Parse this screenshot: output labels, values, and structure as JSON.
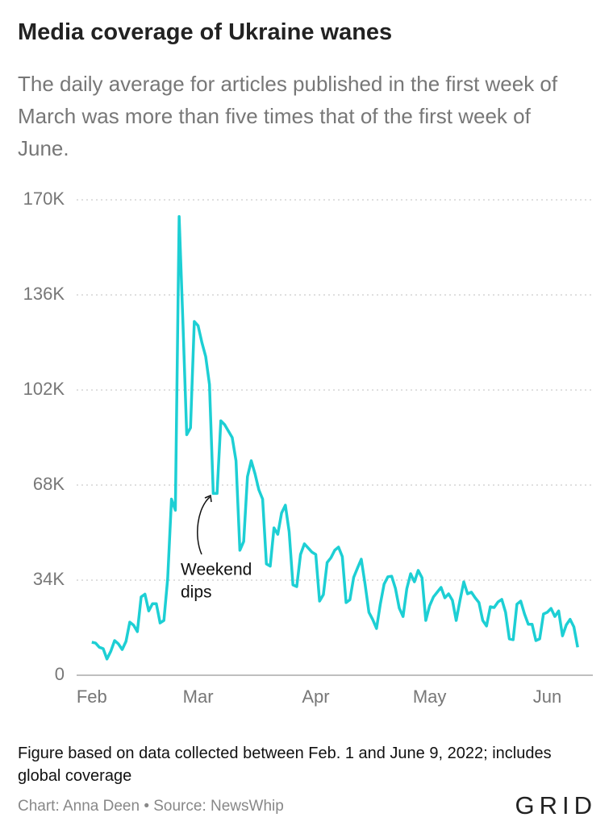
{
  "chart_data": {
    "type": "line",
    "title": "Media coverage of Ukraine wanes",
    "subtitle": "The daily average for articles published in the first week of March was more than five times that of the first week of June.",
    "annotation": [
      "Weekend",
      "dips"
    ],
    "footnote": "Figure based on data collected between Feb. 1 and June 9, 2022; includes global coverage",
    "credit": "Chart: Anna Deen • Source: NewsWhip",
    "logo": "GRID",
    "xlim": [
      "2022-01-28",
      "2022-06-13"
    ],
    "xticks": [
      {
        "value": "2022-02-01",
        "label": "Feb"
      },
      {
        "value": "2022-03-01",
        "label": "Mar"
      },
      {
        "value": "2022-04-01",
        "label": "Apr"
      },
      {
        "value": "2022-05-01",
        "label": "May"
      },
      {
        "value": "2022-06-01",
        "label": "Jun"
      }
    ],
    "ylim": [
      0,
      170000
    ],
    "yticks": [
      0,
      {
        "value": 34000,
        "label": "34K"
      },
      {
        "value": 68000,
        "label": "68K"
      },
      {
        "value": 102000,
        "label": "102K"
      },
      {
        "value": 136000,
        "label": "136K"
      },
      {
        "value": 170000,
        "label": "170K"
      }
    ],
    "grid": true,
    "color": "#1dcfd4",
    "x": [
      "2022-02-01",
      "2022-02-02",
      "2022-02-03",
      "2022-02-04",
      "2022-02-05",
      "2022-02-06",
      "2022-02-07",
      "2022-02-08",
      "2022-02-09",
      "2022-02-10",
      "2022-02-11",
      "2022-02-12",
      "2022-02-13",
      "2022-02-14",
      "2022-02-15",
      "2022-02-16",
      "2022-02-17",
      "2022-02-18",
      "2022-02-19",
      "2022-02-20",
      "2022-02-21",
      "2022-02-22",
      "2022-02-23",
      "2022-02-24",
      "2022-02-25",
      "2022-02-26",
      "2022-02-27",
      "2022-02-28",
      "2022-03-01",
      "2022-03-02",
      "2022-03-03",
      "2022-03-04",
      "2022-03-05",
      "2022-03-06",
      "2022-03-07",
      "2022-03-08",
      "2022-03-09",
      "2022-03-10",
      "2022-03-11",
      "2022-03-12",
      "2022-03-13",
      "2022-03-14",
      "2022-03-15",
      "2022-03-16",
      "2022-03-17",
      "2022-03-18",
      "2022-03-19",
      "2022-03-20",
      "2022-03-21",
      "2022-03-22",
      "2022-03-23",
      "2022-03-24",
      "2022-03-25",
      "2022-03-26",
      "2022-03-27",
      "2022-03-28",
      "2022-03-29",
      "2022-03-30",
      "2022-03-31",
      "2022-04-01",
      "2022-04-02",
      "2022-04-03",
      "2022-04-04",
      "2022-04-05",
      "2022-04-06",
      "2022-04-07",
      "2022-04-08",
      "2022-04-09",
      "2022-04-10",
      "2022-04-11",
      "2022-04-12",
      "2022-04-13",
      "2022-04-14",
      "2022-04-15",
      "2022-04-16",
      "2022-04-17",
      "2022-04-18",
      "2022-04-19",
      "2022-04-20",
      "2022-04-21",
      "2022-04-22",
      "2022-04-23",
      "2022-04-24",
      "2022-04-25",
      "2022-04-26",
      "2022-04-27",
      "2022-04-28",
      "2022-04-29",
      "2022-04-30",
      "2022-05-01",
      "2022-05-02",
      "2022-05-03",
      "2022-05-04",
      "2022-05-05",
      "2022-05-06",
      "2022-05-07",
      "2022-05-08",
      "2022-05-09",
      "2022-05-10",
      "2022-05-11",
      "2022-05-12",
      "2022-05-13",
      "2022-05-14",
      "2022-05-15",
      "2022-05-16",
      "2022-05-17",
      "2022-05-18",
      "2022-05-19",
      "2022-05-20",
      "2022-05-21",
      "2022-05-22",
      "2022-05-23",
      "2022-05-24",
      "2022-05-25",
      "2022-05-26",
      "2022-05-27",
      "2022-05-28",
      "2022-05-29",
      "2022-05-30",
      "2022-05-31",
      "2022-06-01",
      "2022-06-02",
      "2022-06-03",
      "2022-06-04",
      "2022-06-05",
      "2022-06-06",
      "2022-06-07",
      "2022-06-08",
      "2022-06-09"
    ],
    "values": [
      11800,
      11500,
      10000,
      9500,
      5800,
      8600,
      12400,
      11200,
      9200,
      12100,
      19000,
      17900,
      15600,
      28000,
      29000,
      23000,
      25600,
      25600,
      18700,
      19600,
      34600,
      63000,
      59000,
      164000,
      126000,
      86000,
      88500,
      126500,
      125000,
      119000,
      114000,
      104000,
      65000,
      65000,
      91000,
      89600,
      87300,
      85000,
      76700,
      44700,
      47800,
      71000,
      76700,
      72000,
      66300,
      63000,
      39800,
      39000,
      52700,
      50400,
      58000,
      60800,
      51300,
      32300,
      31700,
      43200,
      47000,
      45500,
      44000,
      43200,
      26500,
      28800,
      40300,
      42000,
      44700,
      45800,
      42400,
      26000,
      27000,
      35000,
      38300,
      41500,
      32600,
      22500,
      19900,
      16700,
      25400,
      32600,
      35200,
      35400,
      31000,
      24000,
      21000,
      31000,
      36300,
      33400,
      37500,
      34900,
      19600,
      24800,
      28000,
      29700,
      31400,
      27700,
      29100,
      26800,
      19600,
      26800,
      33400,
      29100,
      29700,
      27700,
      26000,
      19600,
      17600,
      24500,
      24200,
      26200,
      27100,
      22500,
      13000,
      12700,
      25400,
      26500,
      21900,
      18200,
      18200,
      12400,
      13000,
      21900,
      22500,
      23900,
      21000,
      23000,
      14100,
      18000,
      20000,
      17300,
      10000
    ]
  }
}
